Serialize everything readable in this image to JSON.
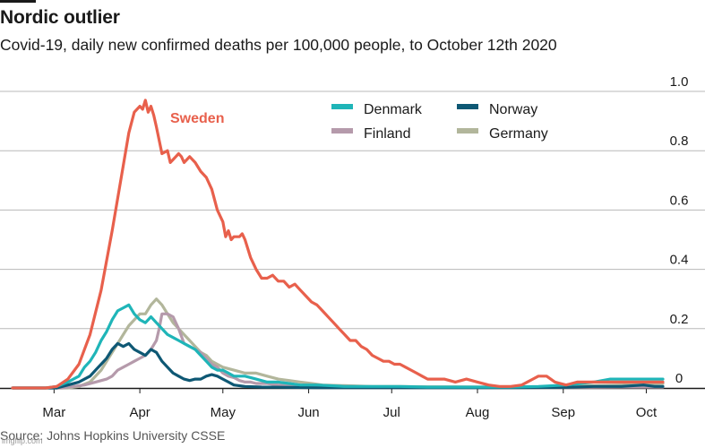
{
  "title": "Nordic outlier",
  "subtitle": "Covid-19, daily new confirmed deaths per 100,000 people, to October 12th 2020",
  "source": "Source: Johns Hopkins University CSSE",
  "watermark": "imgflip.com",
  "colors": {
    "Sweden": "#e8604c",
    "Denmark": "#1fb5b8",
    "Norway": "#0e5874",
    "Finland": "#b59aab",
    "Germany": "#b2b69b",
    "grid": "#b8b8b8",
    "axis": "#1a1a1a"
  },
  "chart_data": {
    "type": "line",
    "title": "Nordic outlier",
    "subtitle": "Covid-19, daily new confirmed deaths per 100,000 people, to October 12th 2020",
    "xlabel": "",
    "ylabel": "",
    "ylim": [
      0,
      1.0
    ],
    "xlim": [
      0,
      235
    ],
    "x_unit": "days since February 15th 2020",
    "y_ticks": [
      0,
      0.2,
      0.4,
      0.6,
      0.8,
      1.0
    ],
    "y_tick_labels": [
      "0",
      "0.2",
      "0.4",
      "0.6",
      "0.8",
      "1.0"
    ],
    "x_ticks": [
      {
        "label": "Mar",
        "day": 15
      },
      {
        "label": "Apr",
        "day": 46
      },
      {
        "label": "May",
        "day": 76
      },
      {
        "label": "Jun",
        "day": 107
      },
      {
        "label": "Jul",
        "day": 137
      },
      {
        "label": "Aug",
        "day": 168
      },
      {
        "label": "Sep",
        "day": 199
      },
      {
        "label": "Oct",
        "day": 229
      }
    ],
    "annotation": {
      "text": "Sweden",
      "series": "Sweden"
    },
    "legend": [
      "Denmark",
      "Norway",
      "Finland",
      "Germany"
    ],
    "series": [
      {
        "name": "Sweden",
        "points": [
          [
            0,
            0
          ],
          [
            12,
            0
          ],
          [
            16,
            0.005
          ],
          [
            20,
            0.03
          ],
          [
            24,
            0.08
          ],
          [
            28,
            0.18
          ],
          [
            32,
            0.33
          ],
          [
            36,
            0.53
          ],
          [
            40,
            0.75
          ],
          [
            42,
            0.86
          ],
          [
            44,
            0.93
          ],
          [
            46,
            0.95
          ],
          [
            47,
            0.94
          ],
          [
            48,
            0.97
          ],
          [
            49,
            0.93
          ],
          [
            50,
            0.95
          ],
          [
            51,
            0.92
          ],
          [
            52,
            0.88
          ],
          [
            54,
            0.79
          ],
          [
            56,
            0.8
          ],
          [
            57,
            0.76
          ],
          [
            58,
            0.77
          ],
          [
            59,
            0.78
          ],
          [
            60,
            0.79
          ],
          [
            61,
            0.78
          ],
          [
            62,
            0.76
          ],
          [
            63,
            0.77
          ],
          [
            64,
            0.78
          ],
          [
            66,
            0.76
          ],
          [
            68,
            0.73
          ],
          [
            70,
            0.71
          ],
          [
            72,
            0.67
          ],
          [
            74,
            0.6
          ],
          [
            76,
            0.56
          ],
          [
            77,
            0.51
          ],
          [
            78,
            0.53
          ],
          [
            79,
            0.5
          ],
          [
            80,
            0.51
          ],
          [
            82,
            0.51
          ],
          [
            83,
            0.52
          ],
          [
            84,
            0.5
          ],
          [
            86,
            0.44
          ],
          [
            88,
            0.4
          ],
          [
            90,
            0.37
          ],
          [
            92,
            0.37
          ],
          [
            94,
            0.38
          ],
          [
            96,
            0.36
          ],
          [
            98,
            0.36
          ],
          [
            100,
            0.34
          ],
          [
            102,
            0.35
          ],
          [
            104,
            0.33
          ],
          [
            106,
            0.31
          ],
          [
            108,
            0.29
          ],
          [
            110,
            0.28
          ],
          [
            112,
            0.26
          ],
          [
            114,
            0.24
          ],
          [
            116,
            0.22
          ],
          [
            118,
            0.2
          ],
          [
            120,
            0.18
          ],
          [
            122,
            0.16
          ],
          [
            124,
            0.16
          ],
          [
            126,
            0.14
          ],
          [
            128,
            0.13
          ],
          [
            130,
            0.11
          ],
          [
            132,
            0.1
          ],
          [
            134,
            0.09
          ],
          [
            136,
            0.09
          ],
          [
            138,
            0.08
          ],
          [
            140,
            0.08
          ],
          [
            142,
            0.07
          ],
          [
            144,
            0.06
          ],
          [
            146,
            0.05
          ],
          [
            148,
            0.04
          ],
          [
            150,
            0.03
          ],
          [
            152,
            0.03
          ],
          [
            156,
            0.03
          ],
          [
            160,
            0.02
          ],
          [
            164,
            0.03
          ],
          [
            168,
            0.02
          ],
          [
            172,
            0.01
          ],
          [
            176,
            0.005
          ],
          [
            180,
            0.005
          ],
          [
            184,
            0.01
          ],
          [
            188,
            0.03
          ],
          [
            190,
            0.04
          ],
          [
            193,
            0.04
          ],
          [
            196,
            0.02
          ],
          [
            200,
            0.01
          ],
          [
            204,
            0.02
          ],
          [
            208,
            0.02
          ],
          [
            212,
            0.02
          ],
          [
            216,
            0.02
          ],
          [
            220,
            0.02
          ],
          [
            224,
            0.02
          ],
          [
            228,
            0.02
          ],
          [
            232,
            0.02
          ],
          [
            235,
            0.02
          ]
        ]
      },
      {
        "name": "Denmark",
        "points": [
          [
            0,
            0
          ],
          [
            12,
            0
          ],
          [
            16,
            0.005
          ],
          [
            20,
            0.02
          ],
          [
            24,
            0.04
          ],
          [
            26,
            0.07
          ],
          [
            28,
            0.09
          ],
          [
            30,
            0.12
          ],
          [
            32,
            0.16
          ],
          [
            34,
            0.19
          ],
          [
            36,
            0.23
          ],
          [
            38,
            0.26
          ],
          [
            40,
            0.27
          ],
          [
            42,
            0.28
          ],
          [
            44,
            0.25
          ],
          [
            46,
            0.23
          ],
          [
            48,
            0.22
          ],
          [
            50,
            0.24
          ],
          [
            52,
            0.22
          ],
          [
            54,
            0.2
          ],
          [
            56,
            0.18
          ],
          [
            58,
            0.17
          ],
          [
            60,
            0.16
          ],
          [
            62,
            0.15
          ],
          [
            64,
            0.14
          ],
          [
            66,
            0.13
          ],
          [
            68,
            0.11
          ],
          [
            70,
            0.09
          ],
          [
            72,
            0.07
          ],
          [
            74,
            0.06
          ],
          [
            76,
            0.06
          ],
          [
            78,
            0.05
          ],
          [
            80,
            0.04
          ],
          [
            84,
            0.04
          ],
          [
            88,
            0.03
          ],
          [
            92,
            0.02
          ],
          [
            96,
            0.02
          ],
          [
            100,
            0.015
          ],
          [
            104,
            0.01
          ],
          [
            110,
            0.01
          ],
          [
            120,
            0.005
          ],
          [
            130,
            0.005
          ],
          [
            140,
            0.005
          ],
          [
            150,
            0.003
          ],
          [
            160,
            0.003
          ],
          [
            170,
            0.003
          ],
          [
            180,
            0.003
          ],
          [
            190,
            0.005
          ],
          [
            200,
            0.01
          ],
          [
            210,
            0.02
          ],
          [
            216,
            0.03
          ],
          [
            220,
            0.03
          ],
          [
            224,
            0.03
          ],
          [
            228,
            0.03
          ],
          [
            232,
            0.03
          ],
          [
            235,
            0.03
          ]
        ]
      },
      {
        "name": "Norway",
        "points": [
          [
            0,
            0
          ],
          [
            16,
            0
          ],
          [
            20,
            0.01
          ],
          [
            24,
            0.02
          ],
          [
            28,
            0.04
          ],
          [
            30,
            0.06
          ],
          [
            32,
            0.08
          ],
          [
            34,
            0.1
          ],
          [
            36,
            0.13
          ],
          [
            38,
            0.15
          ],
          [
            40,
            0.14
          ],
          [
            42,
            0.15
          ],
          [
            44,
            0.13
          ],
          [
            46,
            0.12
          ],
          [
            48,
            0.11
          ],
          [
            50,
            0.13
          ],
          [
            52,
            0.12
          ],
          [
            54,
            0.09
          ],
          [
            56,
            0.07
          ],
          [
            58,
            0.05
          ],
          [
            60,
            0.04
          ],
          [
            62,
            0.03
          ],
          [
            64,
            0.025
          ],
          [
            66,
            0.03
          ],
          [
            68,
            0.03
          ],
          [
            70,
            0.04
          ],
          [
            72,
            0.045
          ],
          [
            74,
            0.04
          ],
          [
            76,
            0.03
          ],
          [
            78,
            0.02
          ],
          [
            80,
            0.01
          ],
          [
            84,
            0.005
          ],
          [
            90,
            0.003
          ],
          [
            100,
            0.002
          ],
          [
            110,
            0.001
          ],
          [
            120,
            0.001
          ],
          [
            140,
            0.001
          ],
          [
            160,
            0.001
          ],
          [
            180,
            0.001
          ],
          [
            200,
            0.002
          ],
          [
            210,
            0.005
          ],
          [
            220,
            0.005
          ],
          [
            228,
            0.01
          ],
          [
            232,
            0.005
          ],
          [
            235,
            0.005
          ]
        ]
      },
      {
        "name": "Finland",
        "points": [
          [
            0,
            0
          ],
          [
            18,
            0
          ],
          [
            22,
            0.005
          ],
          [
            26,
            0.01
          ],
          [
            30,
            0.02
          ],
          [
            34,
            0.03
          ],
          [
            36,
            0.04
          ],
          [
            38,
            0.06
          ],
          [
            40,
            0.07
          ],
          [
            42,
            0.08
          ],
          [
            44,
            0.09
          ],
          [
            46,
            0.1
          ],
          [
            48,
            0.11
          ],
          [
            50,
            0.13
          ],
          [
            52,
            0.16
          ],
          [
            53,
            0.2
          ],
          [
            54,
            0.25
          ],
          [
            56,
            0.25
          ],
          [
            58,
            0.24
          ],
          [
            60,
            0.2
          ],
          [
            62,
            0.15
          ],
          [
            64,
            0.14
          ],
          [
            66,
            0.13
          ],
          [
            68,
            0.12
          ],
          [
            70,
            0.1
          ],
          [
            72,
            0.08
          ],
          [
            74,
            0.07
          ],
          [
            76,
            0.05
          ],
          [
            78,
            0.04
          ],
          [
            80,
            0.035
          ],
          [
            82,
            0.025
          ],
          [
            84,
            0.02
          ],
          [
            86,
            0.02
          ],
          [
            88,
            0.015
          ],
          [
            92,
            0.015
          ],
          [
            96,
            0.01
          ],
          [
            100,
            0.01
          ],
          [
            110,
            0.005
          ],
          [
            120,
            0.005
          ],
          [
            140,
            0.003
          ],
          [
            160,
            0.002
          ],
          [
            180,
            0.002
          ],
          [
            200,
            0.002
          ],
          [
            220,
            0.003
          ],
          [
            235,
            0.003
          ]
        ]
      },
      {
        "name": "Germany",
        "points": [
          [
            0,
            0
          ],
          [
            20,
            0
          ],
          [
            24,
            0.005
          ],
          [
            28,
            0.02
          ],
          [
            32,
            0.06
          ],
          [
            36,
            0.12
          ],
          [
            38,
            0.15
          ],
          [
            40,
            0.18
          ],
          [
            42,
            0.21
          ],
          [
            44,
            0.23
          ],
          [
            46,
            0.25
          ],
          [
            48,
            0.25
          ],
          [
            50,
            0.28
          ],
          [
            52,
            0.3
          ],
          [
            54,
            0.28
          ],
          [
            56,
            0.25
          ],
          [
            58,
            0.22
          ],
          [
            60,
            0.2
          ],
          [
            62,
            0.18
          ],
          [
            64,
            0.16
          ],
          [
            66,
            0.14
          ],
          [
            68,
            0.12
          ],
          [
            70,
            0.11
          ],
          [
            72,
            0.09
          ],
          [
            74,
            0.08
          ],
          [
            76,
            0.07
          ],
          [
            80,
            0.06
          ],
          [
            84,
            0.05
          ],
          [
            88,
            0.05
          ],
          [
            92,
            0.04
          ],
          [
            96,
            0.03
          ],
          [
            100,
            0.025
          ],
          [
            104,
            0.02
          ],
          [
            108,
            0.015
          ],
          [
            112,
            0.01
          ],
          [
            120,
            0.008
          ],
          [
            130,
            0.005
          ],
          [
            140,
            0.005
          ],
          [
            150,
            0.004
          ],
          [
            160,
            0.004
          ],
          [
            170,
            0.003
          ],
          [
            180,
            0.003
          ],
          [
            190,
            0.004
          ],
          [
            200,
            0.005
          ],
          [
            210,
            0.008
          ],
          [
            220,
            0.01
          ],
          [
            228,
            0.012
          ],
          [
            235,
            0.015
          ]
        ]
      }
    ]
  }
}
